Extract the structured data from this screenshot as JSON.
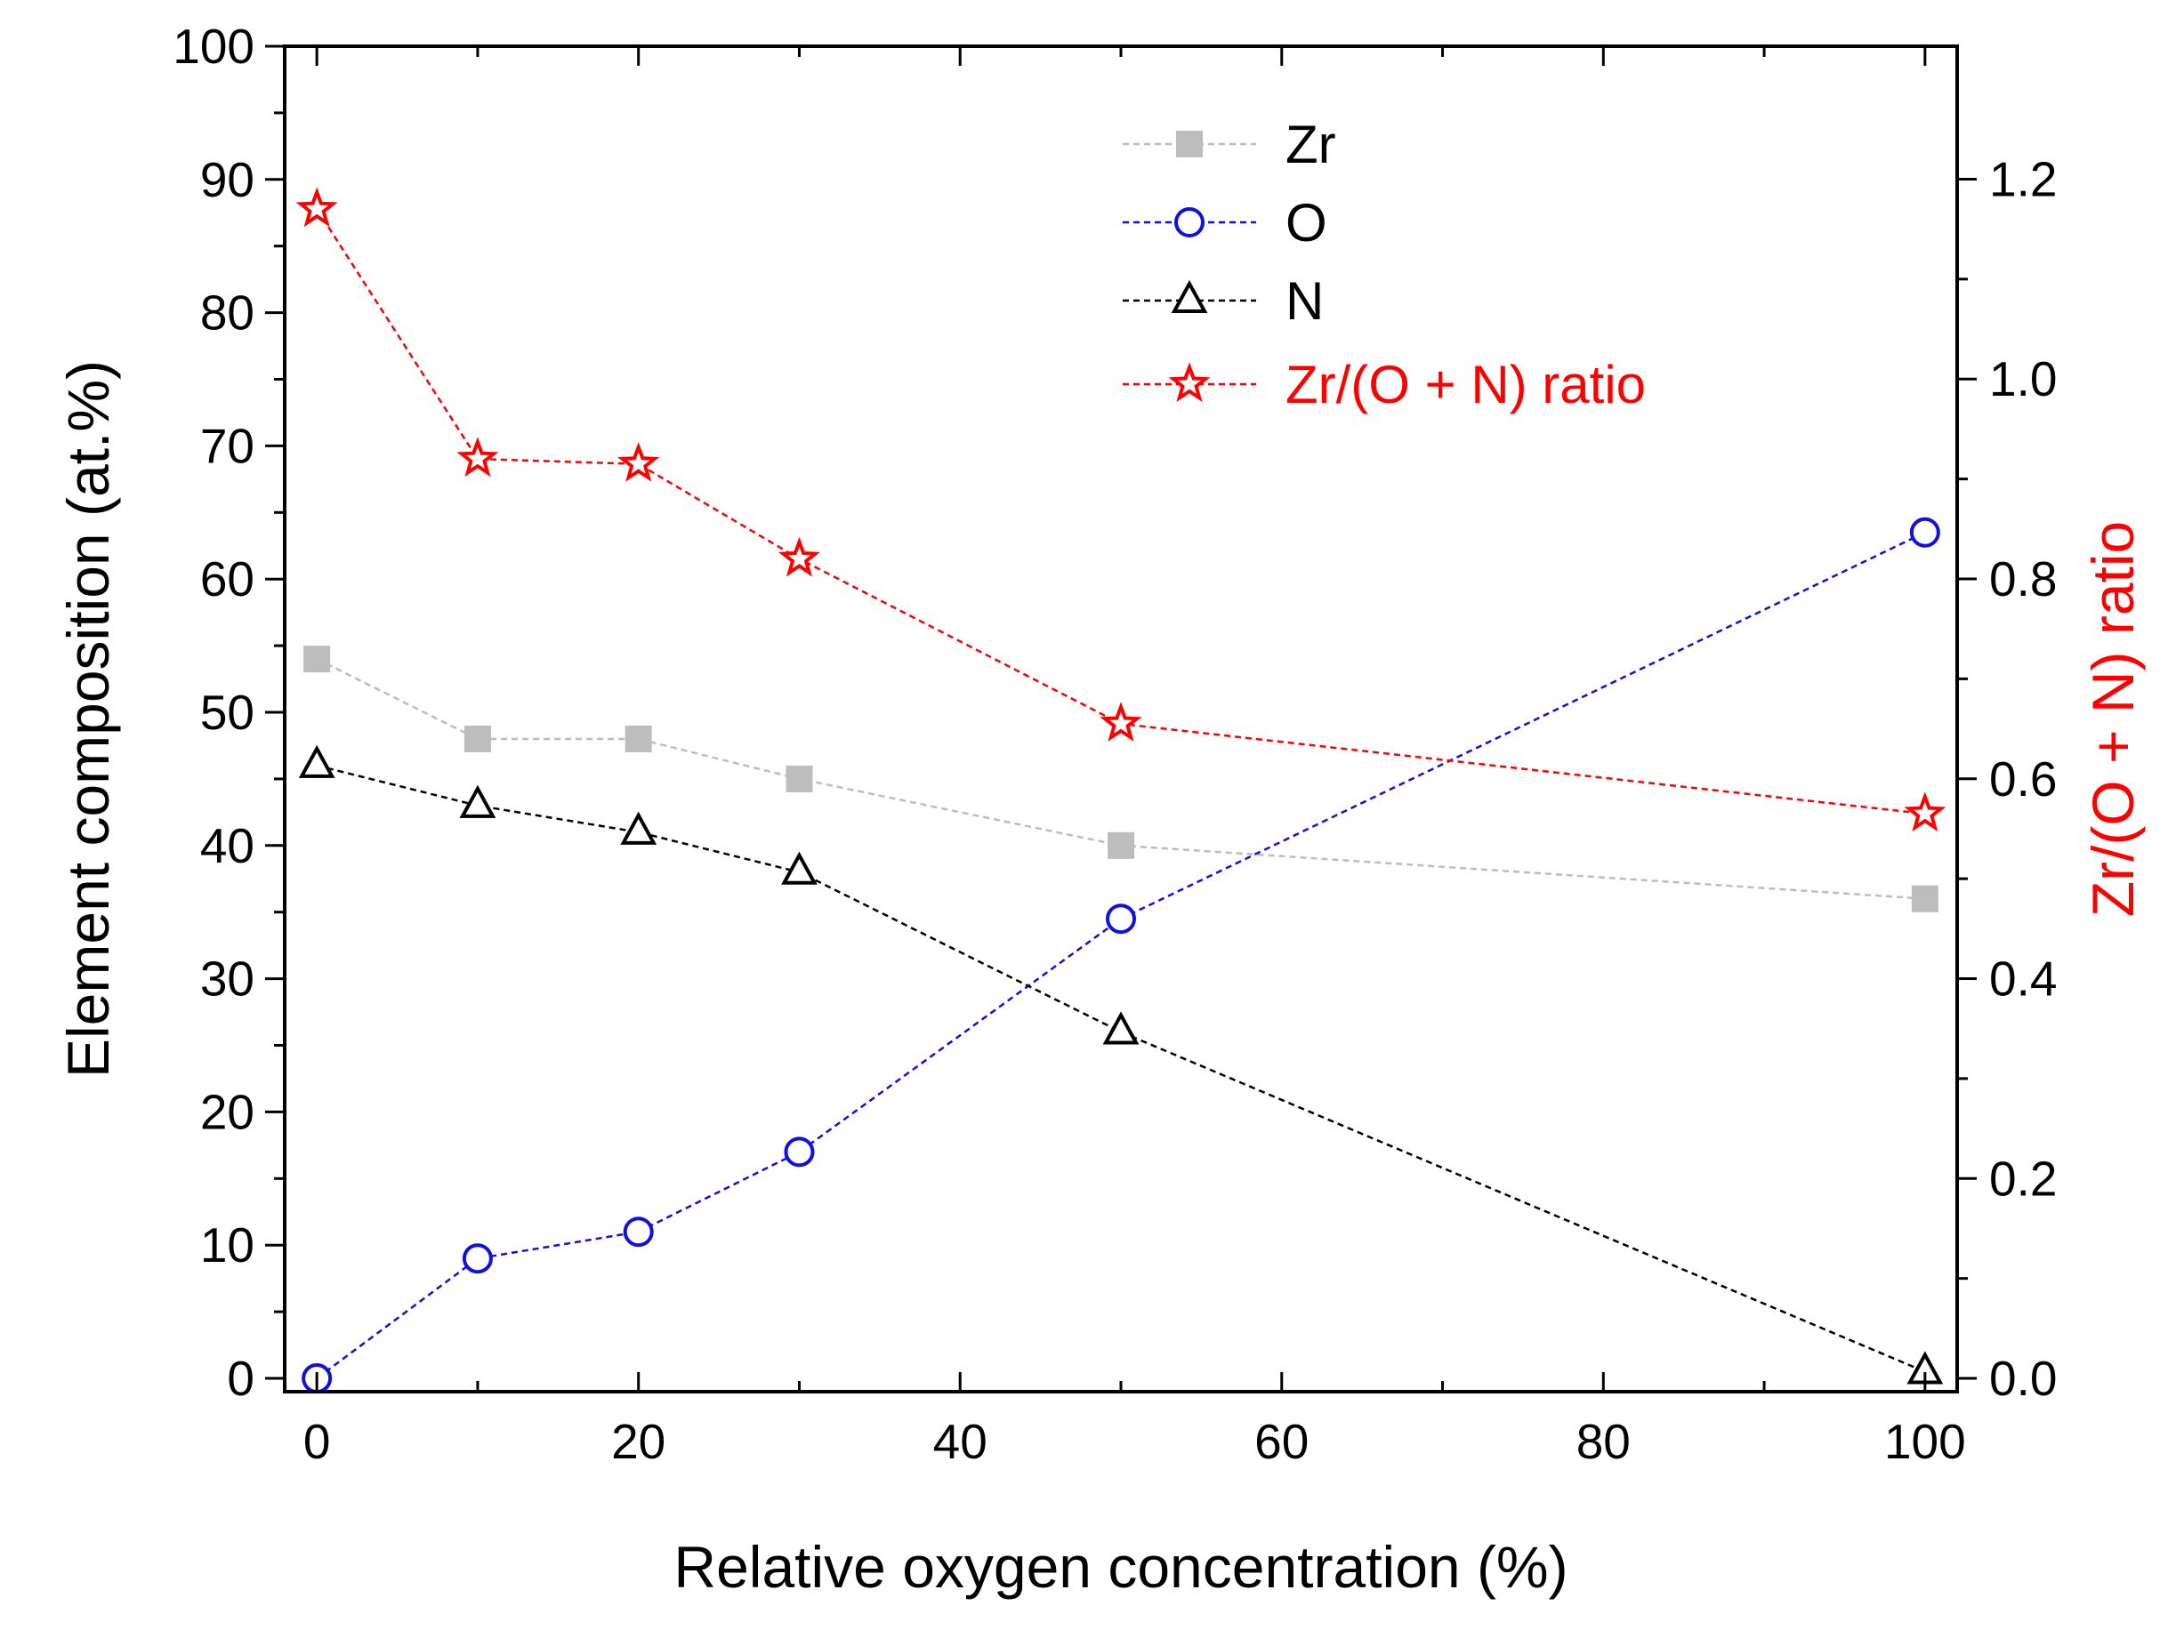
{
  "chart_data": {
    "type": "line",
    "title": "",
    "xlabel": "Relative oxygen concentration (%)",
    "ylabel": "Element composition (at.%)",
    "y2label": "Zr/(O + N) ratio",
    "xlim": [
      -2,
      102
    ],
    "ylim": [
      -1,
      100
    ],
    "y2lim": [
      -0.0133,
      1.333
    ],
    "x_ticks": [
      "0",
      "20",
      "40",
      "60",
      "80",
      "100"
    ],
    "y_ticks": [
      "0",
      "10",
      "20",
      "30",
      "40",
      "50",
      "60",
      "70",
      "80",
      "90",
      "100"
    ],
    "y2_ticks": [
      "0.0",
      "0.2",
      "0.4",
      "0.6",
      "0.8",
      "1.0",
      "1.2"
    ],
    "grid": false,
    "legend_position": "top-right",
    "x": [
      0,
      10,
      20,
      30,
      50,
      100
    ],
    "series": [
      {
        "name": "Zr",
        "axis": "left",
        "marker": "square",
        "color": "#bdbdbd",
        "values": [
          54,
          48,
          48,
          45,
          40,
          36
        ]
      },
      {
        "name": "O",
        "axis": "left",
        "marker": "circle",
        "color": "#1010e0",
        "values": [
          0,
          9,
          11,
          17,
          34.5,
          63.5
        ]
      },
      {
        "name": "N",
        "axis": "left",
        "marker": "triangle",
        "color": "#000000",
        "values": [
          46,
          43,
          41,
          38,
          26,
          0.5
        ]
      },
      {
        "name": "Zr/(O + N) ratio",
        "axis": "right",
        "marker": "star",
        "color": "#ff0000",
        "values": [
          1.17,
          0.92,
          0.915,
          0.82,
          0.655,
          0.565
        ]
      }
    ]
  }
}
